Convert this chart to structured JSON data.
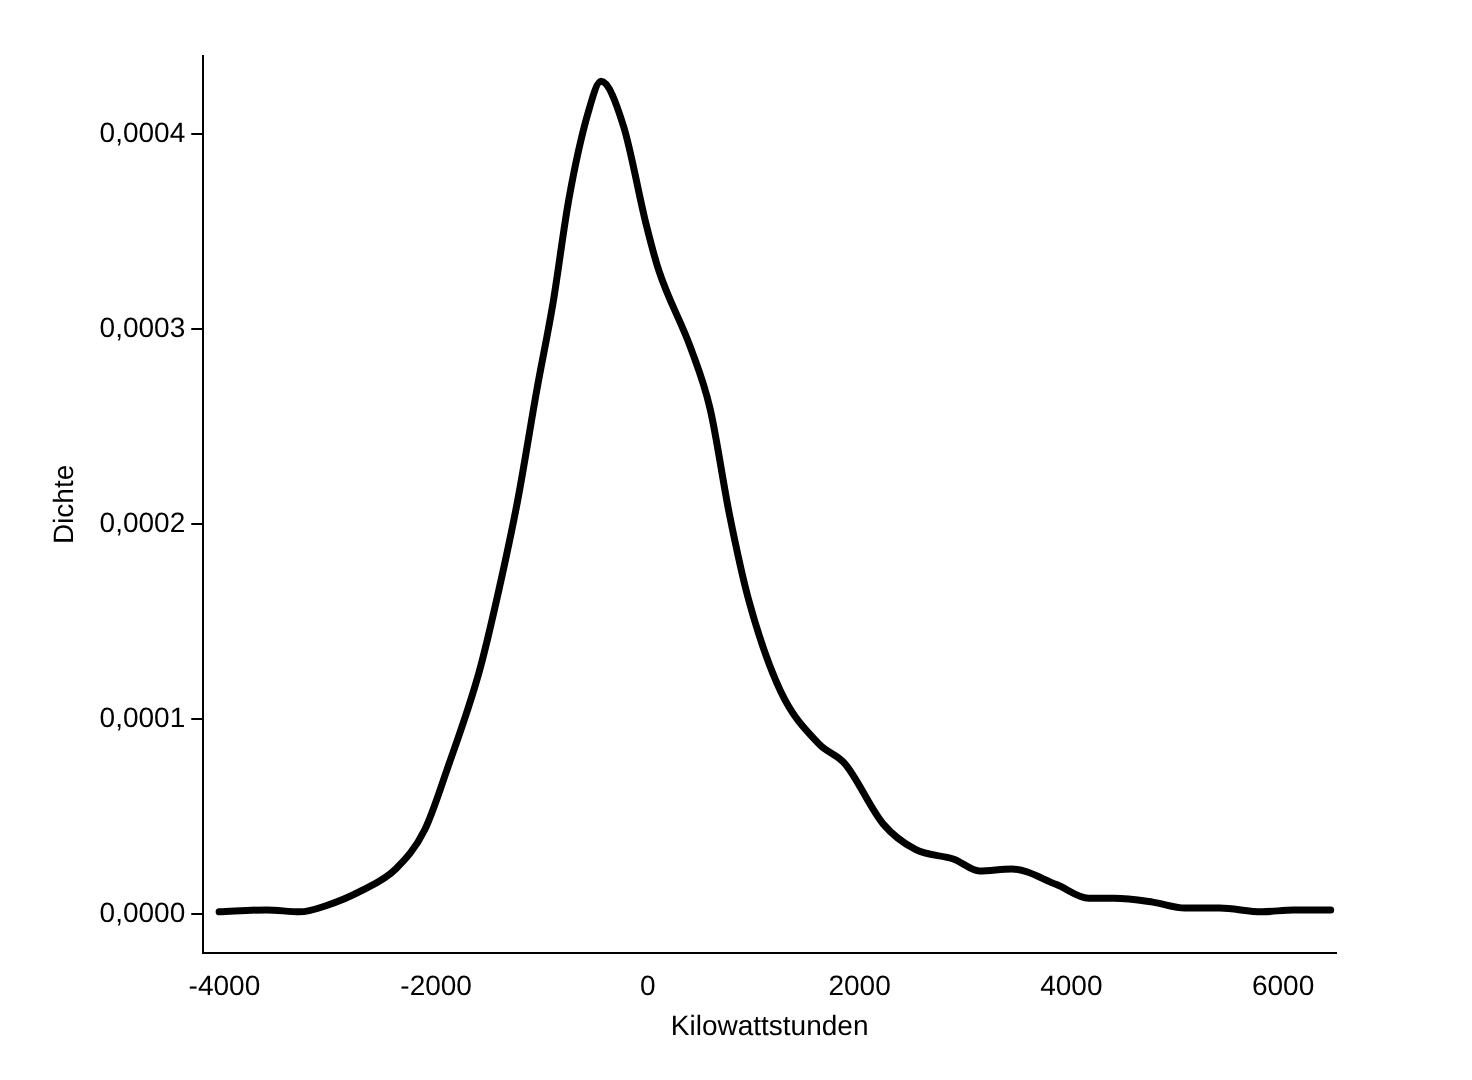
{
  "chart_data": {
    "type": "line",
    "xlabel": "Kilowattstunden",
    "ylabel": "Dichte",
    "x": [
      -4050,
      -3600,
      -3290,
      -3048,
      -2700,
      -2382,
      -2109,
      -1897,
      -1594,
      -1412,
      -1230,
      -1048,
      -897,
      -745,
      -564,
      -442,
      -230,
      -18,
      103,
      406,
      588,
      770,
      952,
      1255,
      1618,
      1861,
      2224,
      2527,
      2891,
      3133,
      3436,
      3860,
      4164,
      4406,
      4770,
      5073,
      5400,
      5800,
      6100,
      6450
    ],
    "series": [
      {
        "color": "#000000",
        "values": [
          1e-06,
          2e-06,
          1e-06,
          4e-06,
          1.2e-05,
          2.3e-05,
          4.3e-05,
          7.4e-05,
          0.000124,
          0.000165,
          0.000212,
          0.000269,
          0.000313,
          0.000367,
          0.000411,
          0.000427,
          0.000404,
          0.000354,
          0.00033,
          0.00029,
          0.000259,
          0.000205,
          0.000161,
          0.000114,
          8.7e-05,
          7.7e-05,
          4.6e-05,
          3.3e-05,
          2.8e-05,
          2.2e-05,
          2.3e-05,
          1.5e-05,
          8e-06,
          8e-06,
          6e-06,
          3e-06,
          3e-06,
          1e-06,
          2e-06,
          2e-06
        ]
      }
    ],
    "xlim": [
      -4200,
      6500
    ],
    "ylim": [
      -2e-05,
      0.00044
    ],
    "xticks": [
      -4000,
      -2000,
      0,
      2000,
      4000,
      6000
    ],
    "yticks": [
      {
        "value": 0,
        "label": "0,0000"
      },
      {
        "value": 0.0001,
        "label": "0,0001"
      },
      {
        "value": 0.0002,
        "label": "0,0002"
      },
      {
        "value": 0.0003,
        "label": "0,0003"
      },
      {
        "value": 0.0004,
        "label": "0,0004"
      }
    ],
    "grid": false,
    "legend": false,
    "marker": "none",
    "line_style": "solid"
  }
}
